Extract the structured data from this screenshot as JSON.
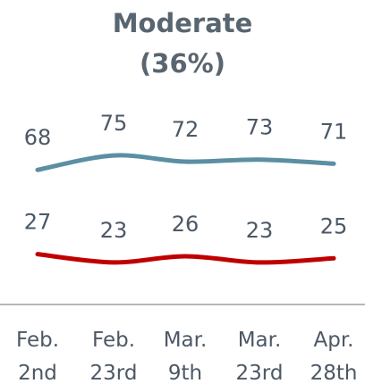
{
  "chart_data": {
    "type": "line",
    "title": "Moderate",
    "subtitle": "(36%)",
    "categories": [
      "Feb. 2nd",
      "Feb. 23rd",
      "Mar. 9th",
      "Mar. 23rd",
      "Apr. 28th"
    ],
    "series": [
      {
        "color": "#5b8fa3",
        "values": [
          68,
          75,
          72,
          73,
          71
        ]
      },
      {
        "color": "#c00000",
        "values": [
          27,
          23,
          26,
          23,
          25
        ]
      }
    ],
    "ylim": [
      16,
      82
    ]
  }
}
